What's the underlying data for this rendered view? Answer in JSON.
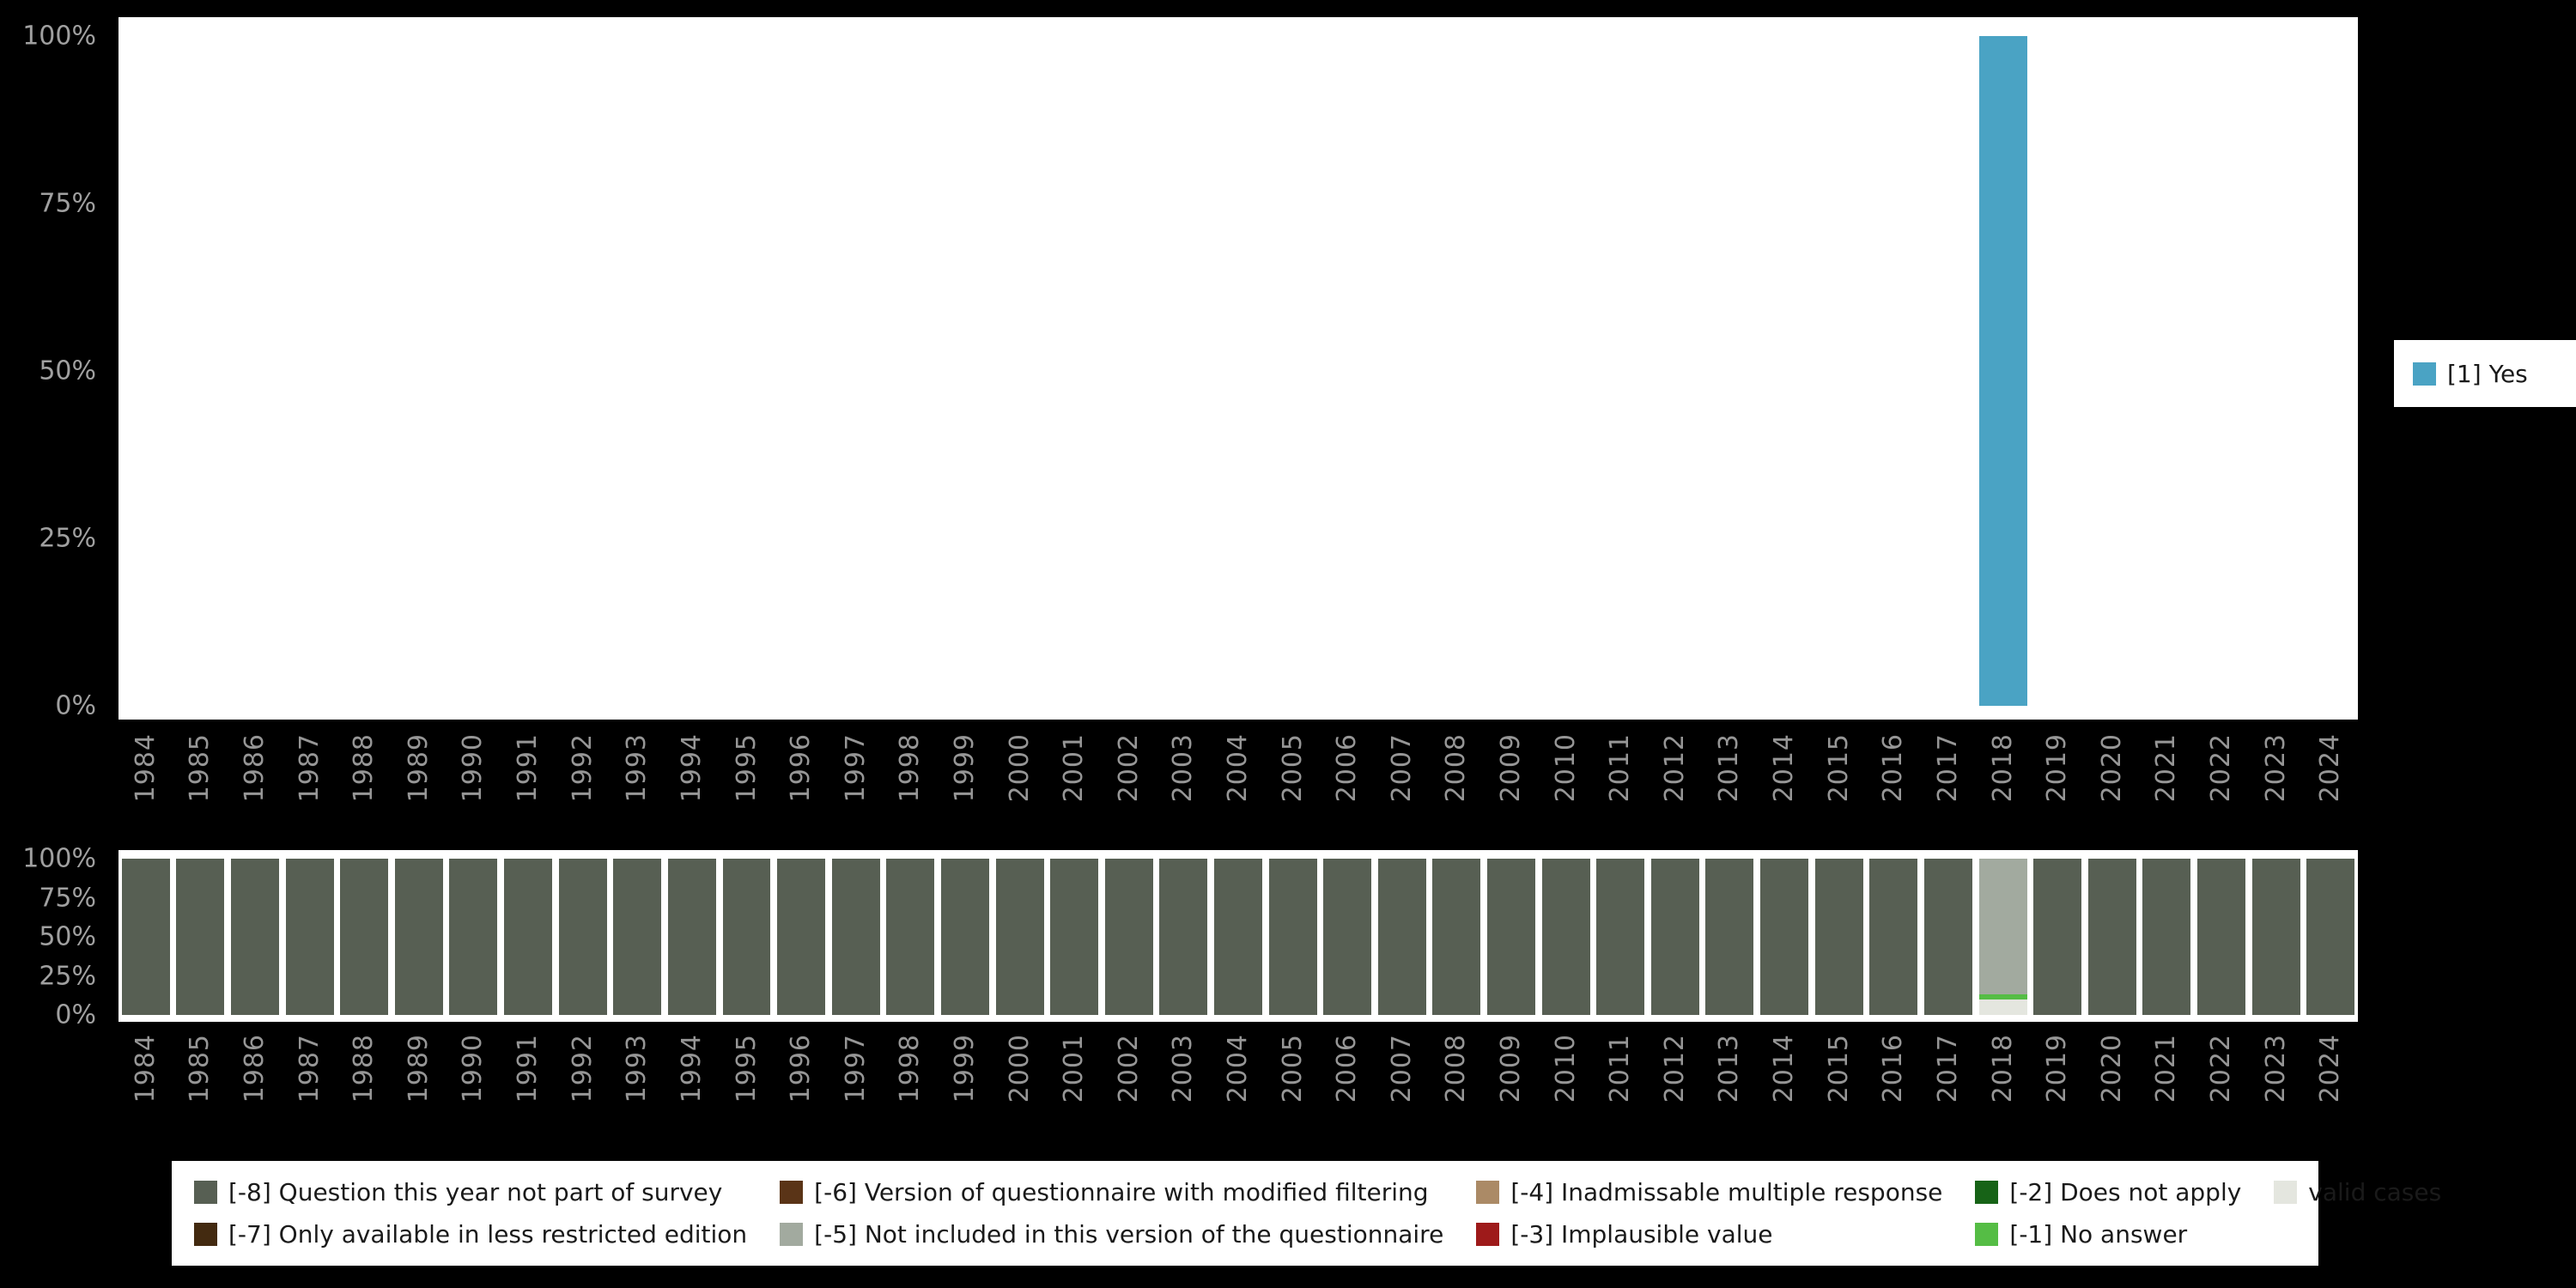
{
  "colors": {
    "background": "#000000",
    "plot_background": "#ffffff",
    "axis_text": "#969696"
  },
  "legend_top": {
    "items": [
      {
        "label": "[1] Yes",
        "color": "#4aa3c4"
      }
    ]
  },
  "legend_bottom": {
    "items": [
      {
        "label": "[-8] Question this year not part of survey",
        "color": "#575f53"
      },
      {
        "label": "[-7] Only available in less restricted edition",
        "color": "#432a10"
      },
      {
        "label": "[-6] Version of questionnaire with modified filtering",
        "color": "#5a3417"
      },
      {
        "label": "[-5] Not included in this version of the questionnaire",
        "color": "#a2aa9f"
      },
      {
        "label": "[-4] Inadmissable multiple response",
        "color": "#ab8a66"
      },
      {
        "label": "[-3] Implausible value",
        "color": "#9e1a1a"
      },
      {
        "label": "[-2] Does not apply",
        "color": "#176317"
      },
      {
        "label": "[-1] No answer",
        "color": "#55bd45"
      },
      {
        "label": "valid cases",
        "color": "#e4e6df"
      }
    ]
  },
  "chart_data": [
    {
      "type": "bar",
      "title": "",
      "xlabel": "",
      "ylabel": "",
      "ylim": [
        0,
        100
      ],
      "grid": false,
      "legend_position": "right",
      "categories": [
        "1984",
        "1985",
        "1986",
        "1987",
        "1988",
        "1989",
        "1990",
        "1991",
        "1992",
        "1993",
        "1994",
        "1995",
        "1996",
        "1997",
        "1998",
        "1999",
        "2000",
        "2001",
        "2002",
        "2003",
        "2004",
        "2005",
        "2006",
        "2007",
        "2008",
        "2009",
        "2010",
        "2011",
        "2012",
        "2013",
        "2014",
        "2015",
        "2016",
        "2017",
        "2018",
        "2019",
        "2020",
        "2021",
        "2022",
        "2023",
        "2024"
      ],
      "yticks": {
        "labels": [
          "0%",
          "25%",
          "50%",
          "75%",
          "100%"
        ],
        "values": [
          0,
          25,
          50,
          75,
          100
        ]
      },
      "series": [
        {
          "name": "[1] Yes",
          "color": "#4aa3c4",
          "values": [
            0,
            0,
            0,
            0,
            0,
            0,
            0,
            0,
            0,
            0,
            0,
            0,
            0,
            0,
            0,
            0,
            0,
            0,
            0,
            0,
            0,
            0,
            0,
            0,
            0,
            0,
            0,
            0,
            0,
            0,
            0,
            0,
            0,
            0,
            100,
            0,
            0,
            0,
            0,
            0,
            0
          ]
        }
      ]
    },
    {
      "type": "bar",
      "subtype": "stacked-percent",
      "title": "",
      "xlabel": "",
      "ylabel": "",
      "ylim": [
        0,
        100
      ],
      "grid": false,
      "legend_position": "bottom",
      "categories": [
        "1984",
        "1985",
        "1986",
        "1987",
        "1988",
        "1989",
        "1990",
        "1991",
        "1992",
        "1993",
        "1994",
        "1995",
        "1996",
        "1997",
        "1998",
        "1999",
        "2000",
        "2001",
        "2002",
        "2003",
        "2004",
        "2005",
        "2006",
        "2007",
        "2008",
        "2009",
        "2010",
        "2011",
        "2012",
        "2013",
        "2014",
        "2015",
        "2016",
        "2017",
        "2018",
        "2019",
        "2020",
        "2021",
        "2022",
        "2023",
        "2024"
      ],
      "yticks": {
        "labels": [
          "0%",
          "25%",
          "50%",
          "75%",
          "100%"
        ],
        "values": [
          0,
          25,
          50,
          75,
          100
        ]
      },
      "series": [
        {
          "name": "valid cases",
          "color": "#e4e6df",
          "values": [
            0,
            0,
            0,
            0,
            0,
            0,
            0,
            0,
            0,
            0,
            0,
            0,
            0,
            0,
            0,
            0,
            0,
            0,
            0,
            0,
            0,
            0,
            0,
            0,
            0,
            0,
            0,
            0,
            0,
            0,
            0,
            0,
            0,
            0,
            10,
            0,
            0,
            0,
            0,
            0,
            0
          ]
        },
        {
          "name": "[-1] No answer",
          "color": "#55bd45",
          "values": [
            0,
            0,
            0,
            0,
            0,
            0,
            0,
            0,
            0,
            0,
            0,
            0,
            0,
            0,
            0,
            0,
            0,
            0,
            0,
            0,
            0,
            0,
            0,
            0,
            0,
            0,
            0,
            0,
            0,
            0,
            0,
            0,
            0,
            0,
            3,
            0,
            0,
            0,
            0,
            0,
            0
          ]
        },
        {
          "name": "[-5] Not included in this version of the questionnaire",
          "color": "#a2aa9f",
          "values": [
            0,
            0,
            0,
            0,
            0,
            0,
            0,
            0,
            0,
            0,
            0,
            0,
            0,
            0,
            0,
            0,
            0,
            0,
            0,
            0,
            0,
            0,
            0,
            0,
            0,
            0,
            0,
            0,
            0,
            0,
            0,
            0,
            0,
            0,
            87,
            0,
            0,
            0,
            0,
            0,
            0
          ]
        },
        {
          "name": "[-8] Question this year not part of survey",
          "color": "#575f53",
          "values": [
            100,
            100,
            100,
            100,
            100,
            100,
            100,
            100,
            100,
            100,
            100,
            100,
            100,
            100,
            100,
            100,
            100,
            100,
            100,
            100,
            100,
            100,
            100,
            100,
            100,
            100,
            100,
            100,
            100,
            100,
            100,
            100,
            100,
            100,
            0,
            100,
            100,
            100,
            100,
            100,
            100
          ]
        }
      ]
    }
  ]
}
